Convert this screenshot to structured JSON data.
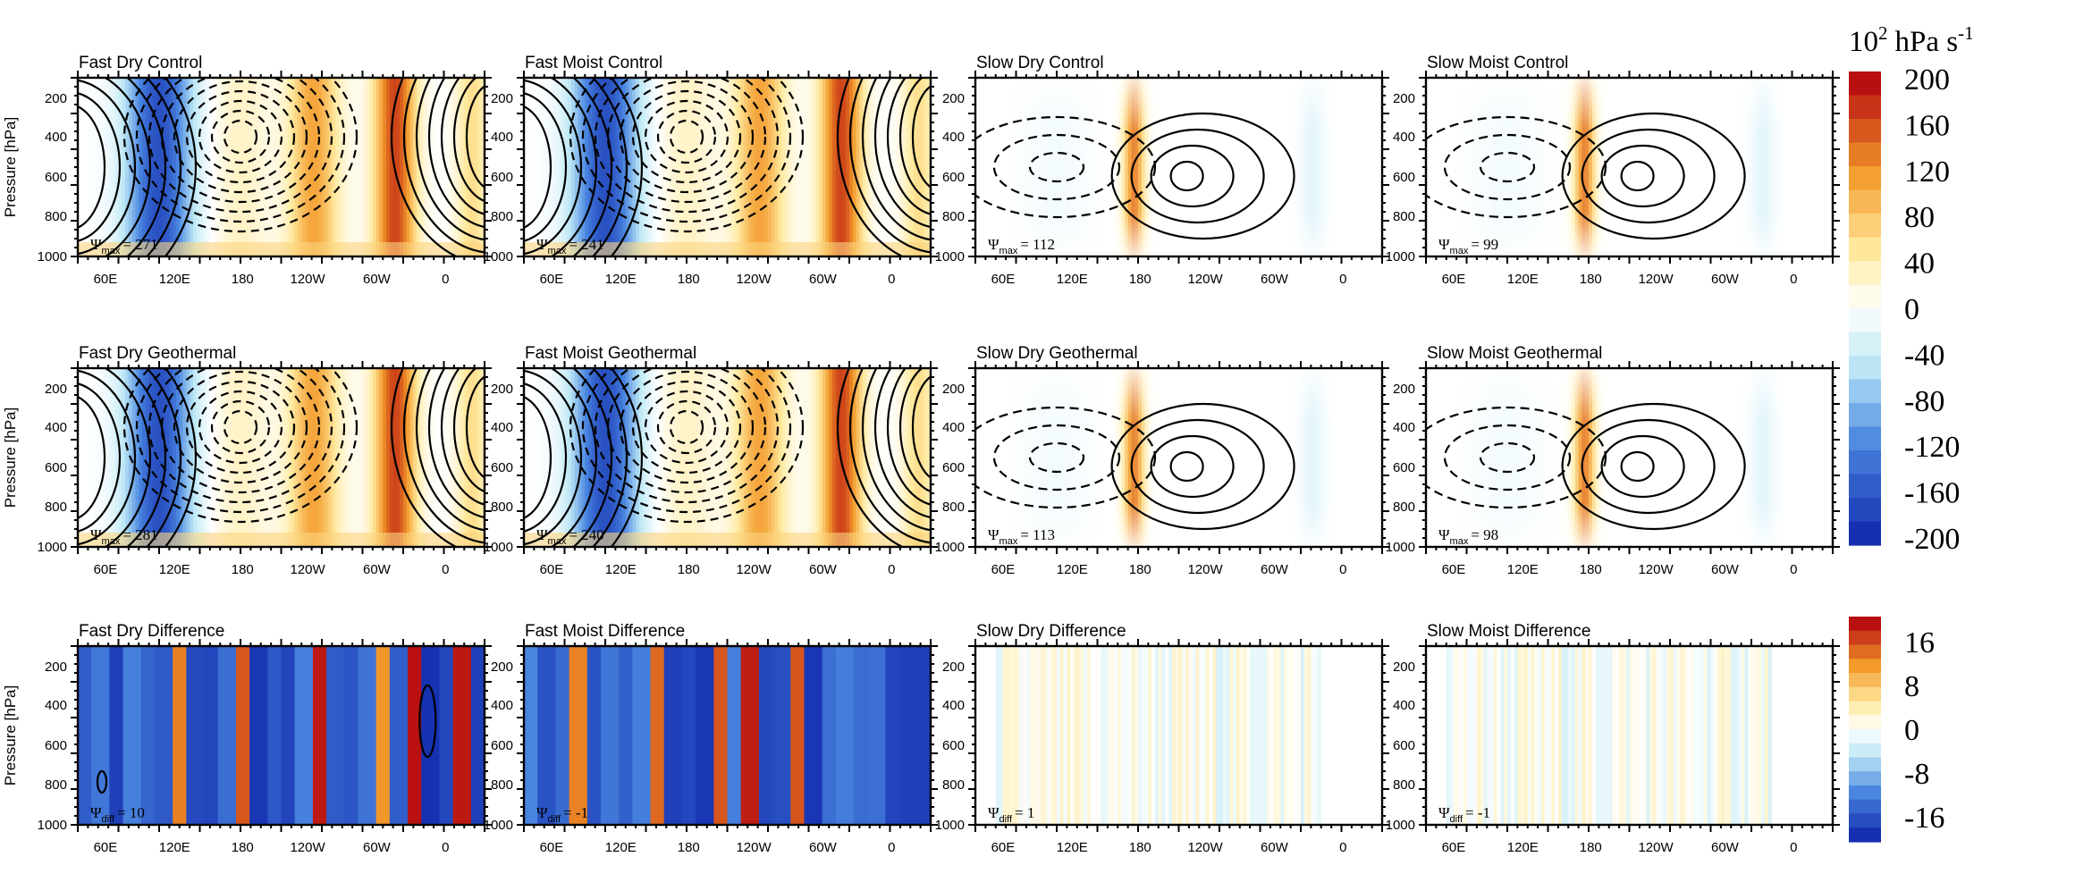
{
  "figure": {
    "colorbar_top": {
      "title": "10",
      "title_exp": "2",
      "title_unit": "hPa s",
      "title_unit_exp": "-1",
      "labels": [
        "200",
        "160",
        "120",
        "80",
        "40",
        "0",
        "-40",
        "-80",
        "-120",
        "-160",
        "-200"
      ]
    },
    "colorbar_bottom": {
      "labels": [
        "16",
        "8",
        "0",
        "-8",
        "-16"
      ]
    },
    "y_axis_label": "Pressure [hPa]",
    "y_ticks": [
      "200",
      "400",
      "600",
      "800",
      "1000"
    ],
    "x_ticks": [
      "60E",
      "120E",
      "180",
      "120W",
      "60W",
      "0"
    ],
    "colors": {
      "neg_strong": "#1530b0",
      "neg_mid": "#4a86e0",
      "neg_light": "#bfe9f6",
      "neutral": "#ffffff",
      "pos_light": "#ffeaa0",
      "pos_mid": "#f39a2a",
      "pos_strong": "#b81010"
    }
  },
  "chart_data": [
    {
      "type": "heatmap",
      "title": "Fast Dry Control",
      "psi_label": "max",
      "psi_value": "= 271",
      "kind": "fast",
      "overlay": "contours",
      "walker": true
    },
    {
      "type": "heatmap",
      "title": "Fast Moist Control",
      "psi_label": "max",
      "psi_value": "= 241",
      "kind": "fast",
      "overlay": "contours",
      "walker": true
    },
    {
      "type": "heatmap",
      "title": "Slow Dry Control",
      "psi_label": "max",
      "psi_value": "= 112",
      "kind": "slow",
      "overlay": "contours",
      "walker": true
    },
    {
      "type": "heatmap",
      "title": "Slow Moist Control",
      "psi_label": "max",
      "psi_value": "= 99",
      "kind": "slow",
      "overlay": "contours",
      "walker": true
    },
    {
      "type": "heatmap",
      "title": "Fast Dry Geothermal",
      "psi_label": "max",
      "psi_value": "= 281",
      "kind": "fast",
      "overlay": "contours",
      "walker": true
    },
    {
      "type": "heatmap",
      "title": "Fast Moist Geothermal",
      "psi_label": "max",
      "psi_value": "= 240",
      "kind": "fast",
      "overlay": "contours",
      "walker": true
    },
    {
      "type": "heatmap",
      "title": "Slow Dry Geothermal",
      "psi_label": "max",
      "psi_value": "= 113",
      "kind": "slow",
      "overlay": "contours",
      "walker": true
    },
    {
      "type": "heatmap",
      "title": "Slow Moist Geothermal",
      "psi_label": "max",
      "psi_value": "= 98",
      "kind": "slow",
      "overlay": "contours",
      "walker": true
    },
    {
      "type": "heatmap",
      "title": "Fast Dry Difference",
      "psi_label": "diff",
      "psi_value": "= 10",
      "kind": "diff_fast",
      "overlay": "single_contour"
    },
    {
      "type": "heatmap",
      "title": "Fast Moist Difference",
      "psi_label": "diff",
      "psi_value": "= -1",
      "kind": "diff_fast",
      "overlay": "none"
    },
    {
      "type": "heatmap",
      "title": "Slow Dry Difference",
      "psi_label": "diff",
      "psi_value": "= 1",
      "kind": "diff_slow",
      "overlay": "none"
    },
    {
      "type": "heatmap",
      "title": "Slow Moist Difference",
      "psi_label": "diff",
      "psi_value": "= -1",
      "kind": "diff_slow",
      "overlay": "none"
    }
  ]
}
